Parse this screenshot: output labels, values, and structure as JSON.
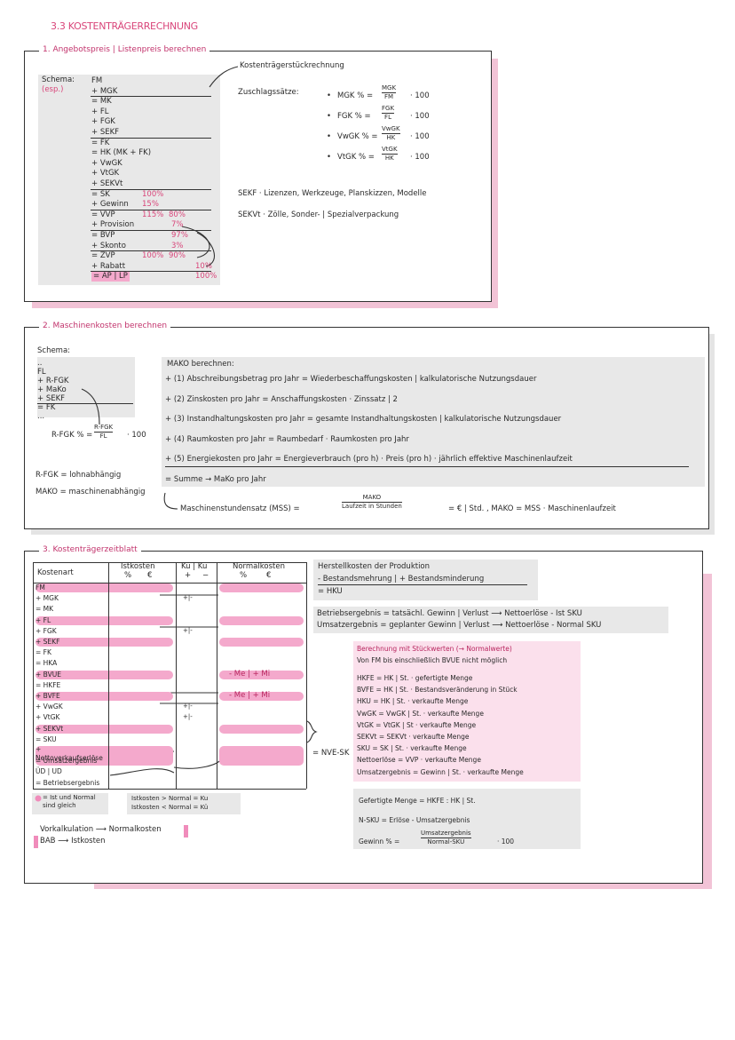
{
  "title": "3.3 KOSTENTRÄGERRECHNUNG",
  "section1": {
    "heading": "1. Angebotspreis | Listenpreis berechnen",
    "schema_label": "Schema:",
    "schema_note": "(esp.)",
    "schema": [
      {
        "text": "FM"
      },
      {
        "text": "+ MGK"
      },
      {
        "text": "= MK"
      },
      {
        "text": "+ FL"
      },
      {
        "text": "+ FGK"
      },
      {
        "text": "+ SEKF"
      },
      {
        "text": "= FK"
      },
      {
        "text": "= HK (MK + FK)"
      },
      {
        "text": "+ VwGK"
      },
      {
        "text": "+ VtGK"
      },
      {
        "text": "+ SEKVt"
      },
      {
        "text": "= SK",
        "pcts": [
          "100%"
        ]
      },
      {
        "text": "+ Gewinn",
        "pcts": [
          "15%"
        ]
      },
      {
        "text": "= VVP",
        "pcts": [
          "115%",
          "80%"
        ]
      },
      {
        "text": "+ Provision",
        "pcts": [
          "7%"
        ]
      },
      {
        "text": "= BVP",
        "pcts": [
          "97%"
        ]
      },
      {
        "text": "+ Skonto",
        "pcts": [
          "3%"
        ]
      },
      {
        "text": "= ZVP",
        "pcts": [
          "100%",
          "90%"
        ]
      },
      {
        "text": "+ Rabatt",
        "pcts": [
          "10%"
        ]
      },
      {
        "text": "= AP | LP",
        "pcts": [
          "100%"
        ]
      }
    ],
    "arrow_label": "Kostenträgerstückrechnung",
    "zuschlag_label": "Zuschlagssätze:",
    "formulas": [
      {
        "label": "MGK % =",
        "num": "MGK",
        "den": "FM",
        "factor": "· 100"
      },
      {
        "label": "FGK % =",
        "num": "FGK",
        "den": "FL",
        "factor": "· 100"
      },
      {
        "label": "VwGK % =",
        "num": "VwGK",
        "den": "HK",
        "factor": "· 100"
      },
      {
        "label": "VtGK % =",
        "num": "VtGK",
        "den": "HK",
        "factor": "· 100"
      }
    ],
    "notes": [
      "SEKF · Lizenzen, Werkzeuge, Planskizzen, Modelle",
      "SEKVt · Zölle, Sonder- | Spezialverpackung"
    ]
  },
  "section2": {
    "heading": "2. Maschinenkosten berechnen",
    "schema_label": "Schema:",
    "schema": [
      "..",
      "FL",
      "+ R-FGK",
      "+ MaKo",
      "+ SEKF",
      "= FK",
      "..."
    ],
    "formula": {
      "label": "R-FGK % =",
      "num": "R-FGK",
      "den": "FL",
      "factor": "· 100"
    },
    "notes": [
      "R-FGK = lohnabhängig",
      "MAKO = maschinenabhängig"
    ],
    "mako_title": "MAKO berechnen:",
    "mako_items": [
      "+ (1) Abschreibungsbetrag pro Jahr = Wiederbeschaffungskosten | kalkulatorische Nutzungsdauer",
      "+ (2) Zinskosten pro Jahr = Anschaffungskosten · Zinssatz | 2",
      "+ (3) Instandhaltungskosten pro Jahr = gesamte Instandhaltungskosten | kalkulatorische Nutzungsdauer",
      "+ (4) Raumkosten pro Jahr = Raumbedarf · Raumkosten pro Jahr",
      "+ (5) Energiekosten pro Jahr = Energieverbrauch (pro h) · Preis (pro h) · jährlich effektive Maschinenlaufzeit",
      "= Summe → MaKo pro Jahr"
    ],
    "mss": {
      "label": "Maschinenstundensatz (MSS) =",
      "num": "MAKO",
      "den": "Laufzeit in Stunden",
      "rest": "= € | Std. , MAKO = MSS · Maschinenlaufzeit"
    }
  },
  "section3": {
    "heading": "3. Kostenträgerzeitblatt",
    "table": {
      "headers": {
        "kostenart": "Kostenart",
        "ist": "Istkosten",
        "ist_sub": [
          "%",
          "€"
        ],
        "kue": "Kü | Ku",
        "kue_sub": [
          "+",
          "−"
        ],
        "normal": "Normalkosten",
        "normal_sub": [
          "%",
          "€"
        ]
      },
      "rows": [
        "FM",
        "+ MGK",
        "= MK",
        "+ FL",
        "+ FGK",
        "+ SEKF",
        "= FK",
        "= HKA",
        "+ BVUE",
        "= HKFE",
        "+ BVFE",
        "+ VwGK",
        "+ VtGK",
        "+ SEKVt",
        "= SKU",
        "+ Nettoverkaufserlöse",
        "= Umsatzergebnis",
        "ÜD | UD",
        "= Betriebsergebnis"
      ],
      "kue_marks": [
        "+|-",
        "+|-",
        "+|-",
        "+|-"
      ],
      "normal_notes": [
        "- Me | + Mi",
        "- Me | + Mi"
      ],
      "side_label": "= NVE-SK"
    },
    "hk_box": [
      "Herstellkosten der Produktion",
      "- Bestandsmehrung | + Bestandsminderung",
      "= HKU"
    ],
    "results": [
      "Betriebsergebnis = tatsächl. Gewinn | Verlust ⟶ Nettoerlöse - Ist SKU",
      "Umsatzergebnis = geplanter Gewinn | Verlust ⟶ Nettoerlöse - Normal SKU"
    ],
    "stueck_title": "Berechnung mit Stückwerten (→ Normalwerte)",
    "stueck_sub": "Von FM bis einschließlich BVUE nicht möglich",
    "stueck_items": [
      "HKFE = HK | St. · gefertigte Menge",
      "BVFE = HK | St. · Bestandsveränderung in Stück",
      "HKU = HK | St. · verkaufte Menge",
      "VwGK = VwGK | St. · verkaufte Menge",
      "VtGK = VtGK | St · verkaufte Menge",
      "SEKVt = SEKVt · verkaufte Menge",
      "SKU = SK | St. · verkaufte Menge",
      "Nettoerlöse = VVP · verkaufte Menge",
      "Umsatzergebnis = Gewinn | St. · verkaufte Menge"
    ],
    "menge_box": [
      "Gefertigte Menge = HKFE : HK | St.",
      "N-SKU = Erlöse - Umsatzergebnis"
    ],
    "gewinn": {
      "label": "Gewinn % =",
      "num": "Umsatzergebnis",
      "den": "Normal-SKU",
      "factor": "· 100"
    },
    "legend": [
      "= Ist und Normal sind gleich",
      "Istkosten > Normal = Ku",
      "Istkosten < Normal = Kü"
    ],
    "kalkulation": [
      "Vorkalkulation ⟶ Normalkosten",
      "BAB ⟶ Istkosten"
    ]
  }
}
